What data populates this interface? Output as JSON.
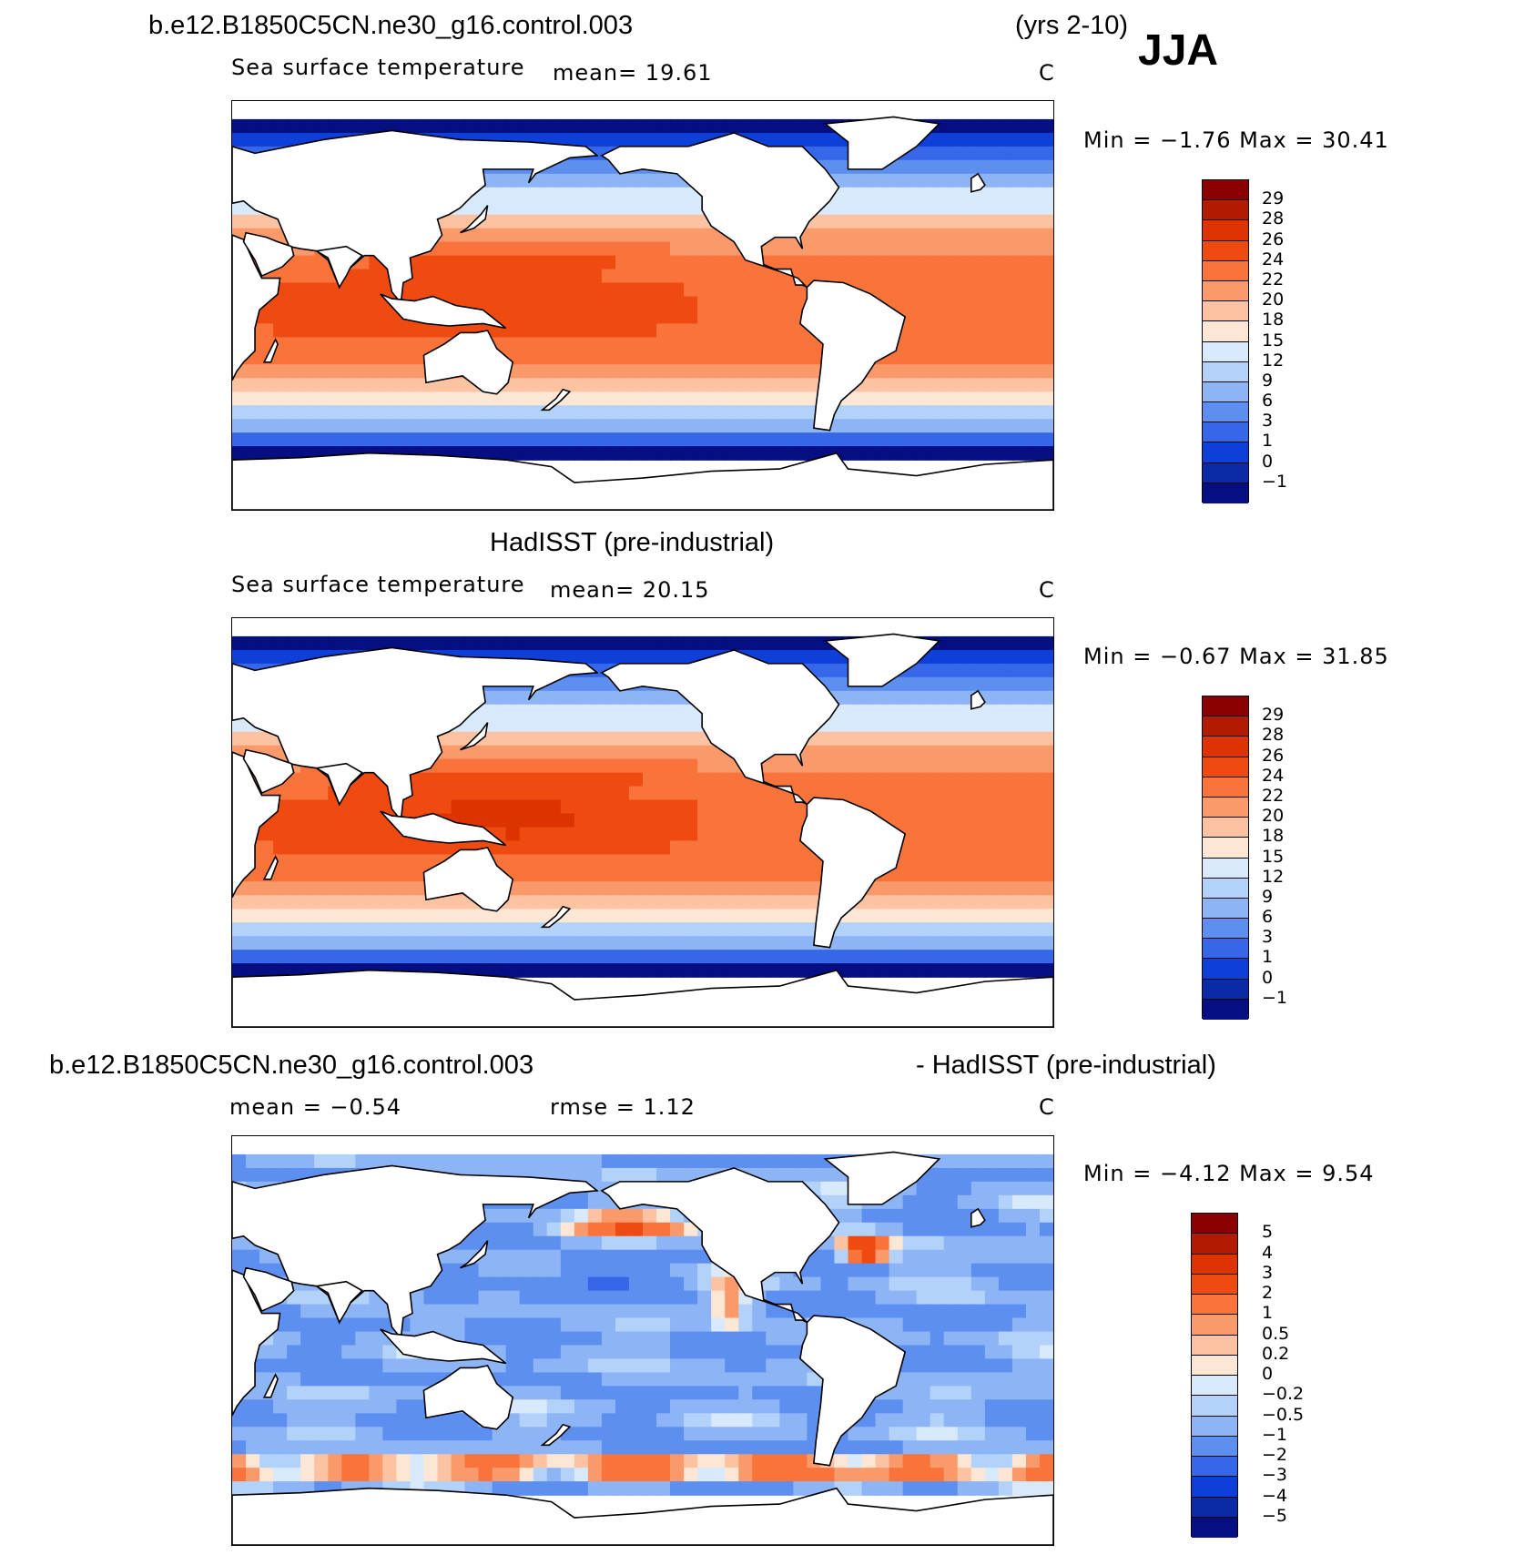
{
  "header": {
    "case_name": "b.e12.B1850C5CN.ne30_g16.control.003",
    "years": "(yrs 2-10)",
    "season": "JJA"
  },
  "panels": [
    {
      "id": "model",
      "title": "",
      "field": "Sea surface temperature",
      "stat_left": "mean=   19.61",
      "stat_mid": "",
      "units": "C",
      "min_max": "Min =   −1.76 Max =   30.41",
      "colorbar": {
        "levels": [
          "29",
          "28",
          "26",
          "24",
          "22",
          "20",
          "18",
          "15",
          "12",
          "9",
          "6",
          "3",
          "1",
          "0",
          "−1"
        ],
        "colors": [
          "#8b0000",
          "#b31b00",
          "#dc3300",
          "#ef4a10",
          "#f8743b",
          "#fa9a6b",
          "#fcc3a2",
          "#fde6d3",
          "#d7e9fb",
          "#b3d2fa",
          "#8db5f6",
          "#5d8ff0",
          "#3567e8",
          "#0f3fd9",
          "#0a2aa8",
          "#050f82"
        ]
      },
      "map": {
        "type": "sst",
        "mean_c": 19.61
      }
    },
    {
      "id": "obs",
      "title": "HadISST (pre-industrial)",
      "field": "Sea surface temperature",
      "stat_left": "mean=   20.15",
      "stat_mid": "",
      "units": "C",
      "min_max": "Min =   −0.67 Max =   31.85",
      "colorbar": {
        "levels": [
          "29",
          "28",
          "26",
          "24",
          "22",
          "20",
          "18",
          "15",
          "12",
          "9",
          "6",
          "3",
          "1",
          "0",
          "−1"
        ],
        "colors": [
          "#8b0000",
          "#b31b00",
          "#dc3300",
          "#ef4a10",
          "#f8743b",
          "#fa9a6b",
          "#fcc3a2",
          "#fde6d3",
          "#d7e9fb",
          "#b3d2fa",
          "#8db5f6",
          "#5d8ff0",
          "#3567e8",
          "#0f3fd9",
          "#0a2aa8",
          "#050f82"
        ]
      },
      "map": {
        "type": "sst",
        "mean_c": 20.15
      }
    },
    {
      "id": "diff",
      "title_left": "b.e12.B1850C5CN.ne30_g16.control.003",
      "title_right": "- HadISST (pre-industrial)",
      "field": "",
      "stat_left": "mean =   −0.54",
      "stat_mid": "rmse =    1.12",
      "units": "C",
      "min_max": "Min =   −4.12 Max =    9.54",
      "colorbar": {
        "levels": [
          "5",
          "4",
          "3",
          "2",
          "1",
          "0.5",
          "0.2",
          "0",
          "−0.2",
          "−0.5",
          "−1",
          "−2",
          "−3",
          "−4",
          "−5"
        ],
        "colors": [
          "#8b0000",
          "#b31b00",
          "#dc3300",
          "#ef4a10",
          "#f8743b",
          "#fa9a6b",
          "#fcc3a2",
          "#fde6d3",
          "#d7e9fb",
          "#b3d2fa",
          "#8db5f6",
          "#5d8ff0",
          "#3567e8",
          "#0f3fd9",
          "#0a2aa8",
          "#050f82"
        ]
      },
      "map": {
        "type": "diff",
        "mean_c": -0.54,
        "rmse_c": 1.12
      }
    }
  ]
}
